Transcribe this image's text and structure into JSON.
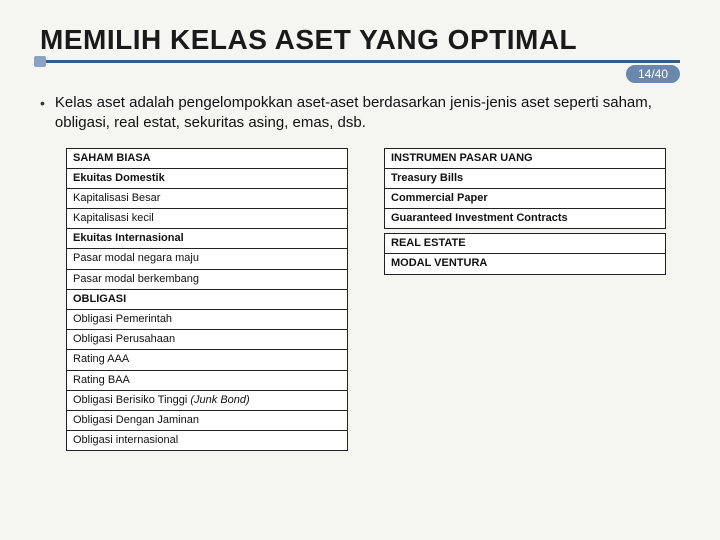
{
  "title": "MEMILIH KELAS ASET YANG OPTIMAL",
  "page": "14/40",
  "bullet": "Kelas aset adalah pengelompokkan aset-aset berdasarkan jenis-jenis aset seperti saham, obligasi, real estat, sekuritas asing, emas, dsb.",
  "left": {
    "h1": "SAHAM BIASA",
    "r1": "Ekuitas Domestik",
    "r2": "Kapitalisasi Besar",
    "r3": "Kapitalisasi kecil",
    "r4": "Ekuitas Internasional",
    "r5": "Pasar modal negara maju",
    "r6": "Pasar modal berkembang",
    "h2": "OBLIGASI",
    "r7": "Obligasi Pemerintah",
    "r8": "Obligasi Perusahaan",
    "r9": "Rating AAA",
    "r10": "Rating BAA",
    "r11a": "Obligasi Berisiko Tinggi ",
    "r11b": "(Junk Bond)",
    "r12": "Obligasi Dengan Jaminan",
    "r13": "Obligasi internasional"
  },
  "right": {
    "h1": "INSTRUMEN PASAR UANG",
    "r1": "Treasury Bills",
    "r2": "Commercial Paper",
    "r3": "Guaranteed Investment Contracts",
    "h2": "REAL ESTATE",
    "h3": "MODAL VENTURA"
  },
  "colors": {
    "underline": "#3a5a8a",
    "pagebg": "#6a88ad"
  }
}
